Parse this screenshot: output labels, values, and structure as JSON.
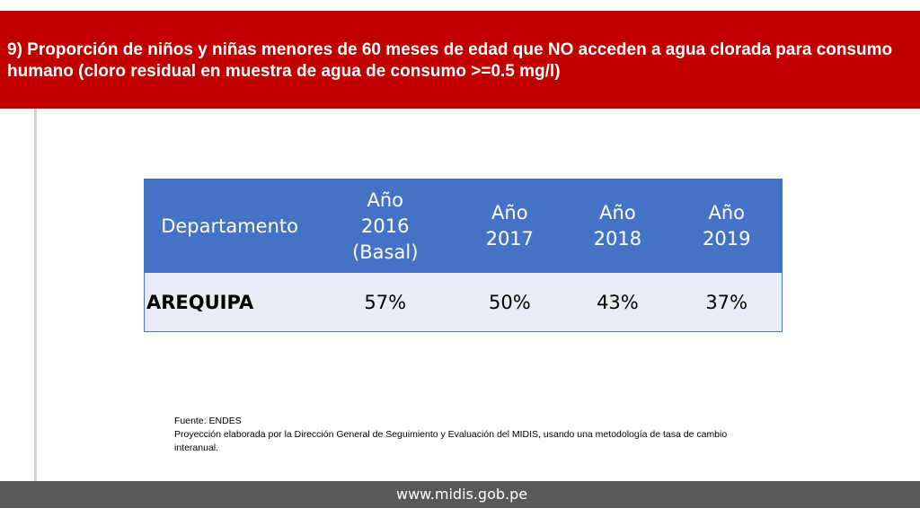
{
  "slide": {
    "title": "9) Proporción de niños y niñas menores de 60 meses de edad que NO acceden a agua clorada para consumo humano (cloro residual en muestra de agua de consumo >=0.5 mg/l)",
    "colors": {
      "title_band": "#c00000",
      "table_header": "#4472c4",
      "table_row": "#e9ecf5",
      "footer": "#595959"
    }
  },
  "table": {
    "headers": [
      [
        "Departamento"
      ],
      [
        "Año",
        "2016",
        "(Basal)"
      ],
      [
        "Año",
        "2017"
      ],
      [
        "Año",
        "2018"
      ],
      [
        "Año",
        "2019"
      ]
    ],
    "rows": [
      [
        "AREQUIPA",
        "57%",
        "50%",
        "43%",
        "37%"
      ]
    ]
  },
  "notes": {
    "source": "Fuente: ENDES",
    "projection": "Proyección elaborada por la Dirección General de Seguimiento y Evaluación del MIDIS, usando una metodología de tasa de cambio  interanual."
  },
  "footer": {
    "url": "www.midis.gob.pe"
  }
}
